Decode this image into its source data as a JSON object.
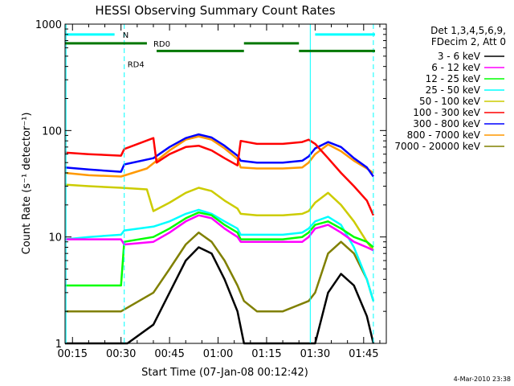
{
  "chart_data": {
    "type": "line",
    "title": "HESSI Observing Summary Count Rates",
    "xlabel": "Start Time (07-Jan-08 00:12:42)",
    "ylabel": "Count Rate (s⁻¹ detector⁻¹)",
    "yscale": "log",
    "ylim": [
      1,
      1000
    ],
    "xlim_minutes": [
      12.7,
      112
    ],
    "x_ticks": [
      {
        "t": 15,
        "label": "00:15"
      },
      {
        "t": 30,
        "label": "00:30"
      },
      {
        "t": 45,
        "label": "00:45"
      },
      {
        "t": 60,
        "label": "01:00"
      },
      {
        "t": 75,
        "label": "01:15"
      },
      {
        "t": 90,
        "label": "01:30"
      },
      {
        "t": 105,
        "label": "01:45"
      }
    ],
    "y_ticks": [
      {
        "v": 1,
        "label": "1"
      },
      {
        "v": 10,
        "label": "10"
      },
      {
        "v": 100,
        "label": "100"
      },
      {
        "v": 1000,
        "label": "1000"
      }
    ],
    "legend": {
      "header": [
        "Det 1,3,4,5,6,9,",
        "FDecim 2, Att 0"
      ],
      "placement": "right"
    },
    "series": [
      {
        "name": "3 - 6 keV",
        "color": "#000000",
        "x": [
          12.7,
          20,
          32,
          40,
          45,
          50,
          54,
          58,
          62,
          66,
          68,
          72,
          80,
          88,
          90,
          94,
          98,
          102,
          106,
          108
        ],
        "y": [
          1,
          1,
          1,
          1.5,
          3,
          6,
          8,
          7,
          4,
          2,
          1,
          1,
          1,
          1,
          1,
          3,
          4.5,
          3.5,
          1.8,
          1
        ]
      },
      {
        "name": "6 - 12 keV",
        "color": "#ff00ff",
        "x": [
          12.7,
          20,
          30,
          31,
          40,
          45,
          50,
          54,
          58,
          62,
          66,
          67,
          72,
          80,
          86,
          88,
          90,
          94,
          98,
          102,
          106,
          108
        ],
        "y": [
          9.5,
          9.5,
          9.5,
          8.5,
          9,
          11,
          14,
          16,
          15,
          12,
          10,
          9,
          9,
          9,
          9,
          10,
          12,
          13,
          11,
          9,
          8,
          7.5
        ]
      },
      {
        "name": "12 - 25 keV",
        "color": "#00ff00",
        "x": [
          12.7,
          20,
          30,
          31,
          40,
          45,
          50,
          54,
          58,
          62,
          66,
          67,
          72,
          80,
          86,
          88,
          90,
          94,
          98,
          102,
          106,
          108
        ],
        "y": [
          3.5,
          3.5,
          3.5,
          9,
          10,
          12,
          15,
          17,
          16,
          13,
          11,
          9.5,
          9.5,
          9.5,
          10,
          11,
          13,
          14,
          12,
          10,
          9,
          8
        ]
      },
      {
        "name": "25 - 50 keV",
        "color": "#00ffff",
        "x": [
          12.7,
          20,
          30,
          31,
          40,
          45,
          50,
          54,
          58,
          62,
          66,
          67,
          72,
          80,
          86,
          88,
          90,
          94,
          98,
          102,
          106,
          108
        ],
        "y": [
          9.5,
          10,
          10.5,
          11.5,
          12.5,
          14,
          16.5,
          18,
          16.5,
          14,
          12,
          10.5,
          10.5,
          10.5,
          11,
          12,
          14,
          15.5,
          13,
          8,
          4,
          2.5
        ]
      },
      {
        "name": "50 - 100 keV",
        "color": "#cccc00",
        "x": [
          12.7,
          20,
          30,
          38,
          40,
          45,
          50,
          54,
          58,
          62,
          66,
          67,
          72,
          80,
          86,
          88,
          90,
          94,
          98,
          102,
          106,
          108
        ],
        "y": [
          31,
          30,
          29,
          28,
          17.5,
          21,
          26,
          29,
          27,
          22,
          18.5,
          16.5,
          16,
          16,
          16.5,
          17.5,
          21,
          26,
          20,
          14,
          9,
          7.5
        ]
      },
      {
        "name": "100 - 300 keV",
        "color": "#ff0000",
        "x": [
          12.7,
          20,
          30,
          31,
          40,
          41,
          45,
          50,
          54,
          58,
          62,
          66,
          67,
          72,
          80,
          86,
          88,
          90,
          94,
          98,
          102,
          106,
          108
        ],
        "y": [
          62,
          60,
          58,
          67,
          85,
          50,
          60,
          70,
          72,
          65,
          55,
          47,
          80,
          75,
          75,
          78,
          82,
          75,
          55,
          40,
          30,
          22,
          16
        ]
      },
      {
        "name": "300 - 800 keV",
        "color": "#0000ff",
        "x": [
          12.7,
          20,
          30,
          31,
          40,
          45,
          50,
          54,
          58,
          62,
          66,
          67,
          72,
          80,
          86,
          88,
          90,
          94,
          98,
          102,
          106,
          108
        ],
        "y": [
          45,
          43,
          41,
          48,
          55,
          70,
          85,
          92,
          86,
          72,
          58,
          52,
          50,
          50,
          52,
          57,
          68,
          78,
          70,
          55,
          45,
          37
        ]
      },
      {
        "name": "800 - 7000 keV",
        "color": "#ff9900",
        "x": [
          12.7,
          20,
          30,
          38,
          45,
          50,
          54,
          58,
          62,
          66,
          67,
          72,
          80,
          86,
          88,
          90,
          94,
          98,
          102,
          106,
          108
        ],
        "y": [
          40,
          38,
          37,
          44,
          65,
          82,
          88,
          82,
          68,
          54,
          45,
          44,
          44,
          45,
          50,
          60,
          74,
          64,
          52,
          44,
          40
        ]
      },
      {
        "name": "7000 - 20000 keV",
        "color": "#808000",
        "x": [
          12.7,
          20,
          30,
          40,
          45,
          50,
          54,
          58,
          62,
          66,
          68,
          72,
          80,
          88,
          90,
          94,
          98,
          102,
          106,
          108
        ],
        "y": [
          2,
          2,
          2,
          3,
          5,
          8.5,
          11,
          9,
          6,
          3.5,
          2.5,
          2,
          2,
          2.5,
          3,
          7,
          9,
          7,
          4,
          2.5
        ]
      }
    ],
    "annotations": [
      {
        "id": "N",
        "label": "N",
        "color": "#00ffff",
        "y": 800,
        "segments": [
          [
            12.7,
            28
          ],
          [
            90,
            110
          ]
        ]
      },
      {
        "id": "RD0",
        "label": "RD0",
        "color": "#007700",
        "y": 660,
        "segments": [
          [
            12.7,
            38
          ],
          [
            68,
            85
          ]
        ]
      },
      {
        "id": "RD4",
        "label": "RD4",
        "color": "#007700",
        "y": 560,
        "segments": [
          [
            41,
            68
          ],
          [
            85,
            110
          ]
        ]
      }
    ],
    "vertical_lines": [
      {
        "t": 13,
        "style": "solid",
        "color": "#00ffff"
      },
      {
        "t": 31,
        "style": "dashed",
        "color": "#00ffff"
      },
      {
        "t": 88.5,
        "style": "solid",
        "color": "#00ffff"
      },
      {
        "t": 108,
        "style": "dashed",
        "color": "#00ffff"
      }
    ]
  },
  "footer_stamp": "4-Mar-2010 23:38"
}
